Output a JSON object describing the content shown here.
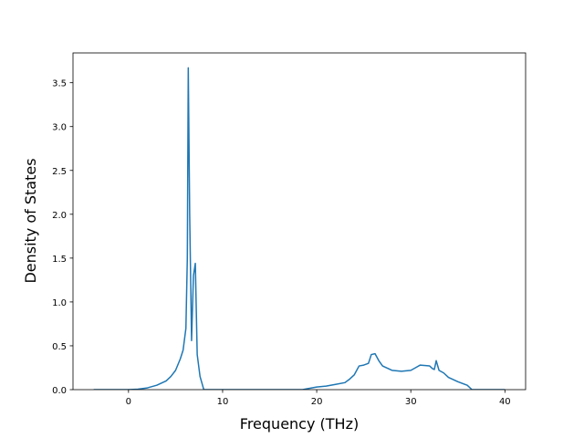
{
  "chart_data": {
    "type": "line",
    "x_label": "Frequency (THz)",
    "y_label": "Density of States",
    "x": [
      -3.7,
      0,
      1,
      2,
      3,
      4,
      4.5,
      5,
      5.5,
      5.8,
      6.1,
      6.25,
      6.35,
      6.5,
      6.7,
      6.9,
      7.1,
      7.3,
      7.6,
      8,
      10,
      18.5,
      19,
      20,
      21,
      22,
      23,
      23.5,
      24,
      24.5,
      25,
      25.5,
      25.8,
      26.2,
      26.6,
      27,
      28,
      29,
      30,
      30.5,
      31,
      32,
      32.3,
      32.5,
      32.7,
      33,
      33.5,
      34,
      35,
      36,
      36.5,
      40
    ],
    "series": [
      {
        "color": "#1f77b4",
        "values": [
          0,
          0,
          0.005,
          0.02,
          0.05,
          0.1,
          0.15,
          0.22,
          0.35,
          0.45,
          0.7,
          1.5,
          3.67,
          2.0,
          0.56,
          1.3,
          1.44,
          0.4,
          0.15,
          0,
          0,
          0,
          0.01,
          0.03,
          0.04,
          0.06,
          0.08,
          0.12,
          0.17,
          0.27,
          0.28,
          0.3,
          0.4,
          0.41,
          0.33,
          0.27,
          0.22,
          0.21,
          0.22,
          0.25,
          0.28,
          0.27,
          0.24,
          0.23,
          0.33,
          0.22,
          0.19,
          0.14,
          0.09,
          0.05,
          0,
          0
        ]
      }
    ],
    "xlim": [
      -5.9,
      42.2
    ],
    "ylim": [
      0,
      3.84
    ],
    "xticks": [
      0,
      10,
      20,
      30,
      40
    ],
    "yticks": [
      {
        "value": 0,
        "label": "0.0"
      },
      0.5,
      {
        "value": 1,
        "label": "1.0"
      },
      1.5,
      {
        "value": 2,
        "label": "2.0"
      },
      2.5,
      {
        "value": 3,
        "label": "3.0"
      },
      3.5
    ]
  }
}
